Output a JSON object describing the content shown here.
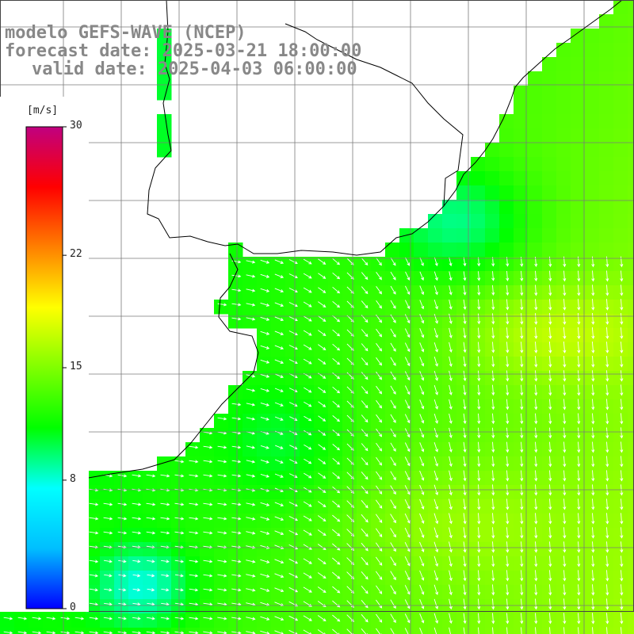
{
  "title": {
    "line1": "modelo GEFS-WAVE (NCEP)",
    "line2": "forecast date: 2025-03-21 18:00:00",
    "line3": "valid date: 2025-04-03 06:00:00"
  },
  "colorbar": {
    "unit": "[m/s]",
    "ticks": [
      "30",
      "22",
      "15",
      "8",
      "0"
    ],
    "tick_values": [
      30,
      22,
      15,
      8,
      0
    ],
    "min": 0,
    "max": 30,
    "colors": [
      "#0000ff",
      "#00bfff",
      "#00ffff",
      "#00ff00",
      "#80ff00",
      "#ffff00",
      "#ff8000",
      "#ff0000",
      "#c00080"
    ]
  },
  "map_colors": {
    "land": "#ffffff",
    "coast": "#000000",
    "grid": "#7a7a7a",
    "arrows": "#ffffff"
  }
}
